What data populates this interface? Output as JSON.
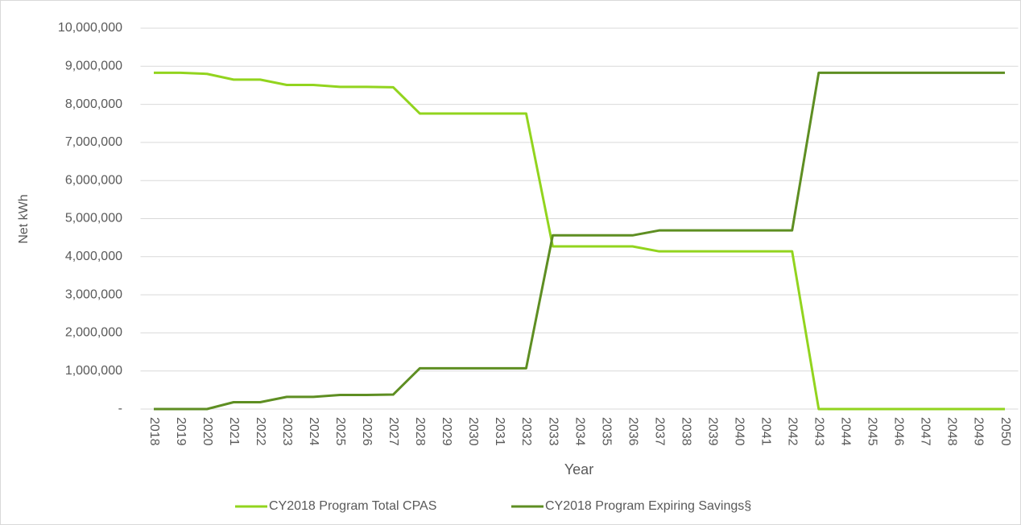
{
  "chart_data": {
    "type": "line",
    "x_label": "Year",
    "y_label": "Net kWh",
    "categories": [
      "2018",
      "2019",
      "2020",
      "2021",
      "2022",
      "2023",
      "2024",
      "2025",
      "2026",
      "2027",
      "2028",
      "2029",
      "2030",
      "2031",
      "2032",
      "2033",
      "2034",
      "2035",
      "2036",
      "2037",
      "2038",
      "2039",
      "2040",
      "2041",
      "2042",
      "2043",
      "2044",
      "2045",
      "2046",
      "2047",
      "2048",
      "2049",
      "2050"
    ],
    "series": [
      {
        "name": "CY2018 Program Total CPAS",
        "color": "#92d41e",
        "values": [
          8830000,
          8830000,
          8800000,
          8650000,
          8650000,
          8510000,
          8510000,
          8460000,
          8460000,
          8450000,
          7760000,
          7760000,
          7760000,
          7760000,
          7760000,
          4270000,
          4270000,
          4270000,
          4270000,
          4140000,
          4140000,
          4140000,
          4140000,
          4140000,
          4140000,
          0,
          0,
          0,
          0,
          0,
          0,
          0,
          0
        ]
      },
      {
        "name": "CY2018 Program Expiring Savings§",
        "color": "#5e8e22",
        "values": [
          0,
          0,
          0,
          180000,
          180000,
          320000,
          320000,
          370000,
          370000,
          380000,
          1070000,
          1070000,
          1070000,
          1070000,
          1070000,
          4560000,
          4560000,
          4560000,
          4560000,
          4690000,
          4690000,
          4690000,
          4690000,
          4690000,
          4690000,
          8830000,
          8830000,
          8830000,
          8830000,
          8830000,
          8830000,
          8830000,
          8830000
        ]
      }
    ],
    "ylim": [
      0,
      10000000
    ],
    "yticks": [
      {
        "value": 0,
        "label": "-"
      },
      {
        "value": 1000000,
        "label": "1,000,000"
      },
      {
        "value": 2000000,
        "label": "2,000,000"
      },
      {
        "value": 3000000,
        "label": "3,000,000"
      },
      {
        "value": 4000000,
        "label": "4,000,000"
      },
      {
        "value": 5000000,
        "label": "5,000,000"
      },
      {
        "value": 6000000,
        "label": "6,000,000"
      },
      {
        "value": 7000000,
        "label": "7,000,000"
      },
      {
        "value": 8000000,
        "label": "8,000,000"
      },
      {
        "value": 9000000,
        "label": "9,000,000"
      },
      {
        "value": 10000000,
        "label": "10,000,000"
      }
    ],
    "grid": true,
    "legend": "bottom"
  }
}
